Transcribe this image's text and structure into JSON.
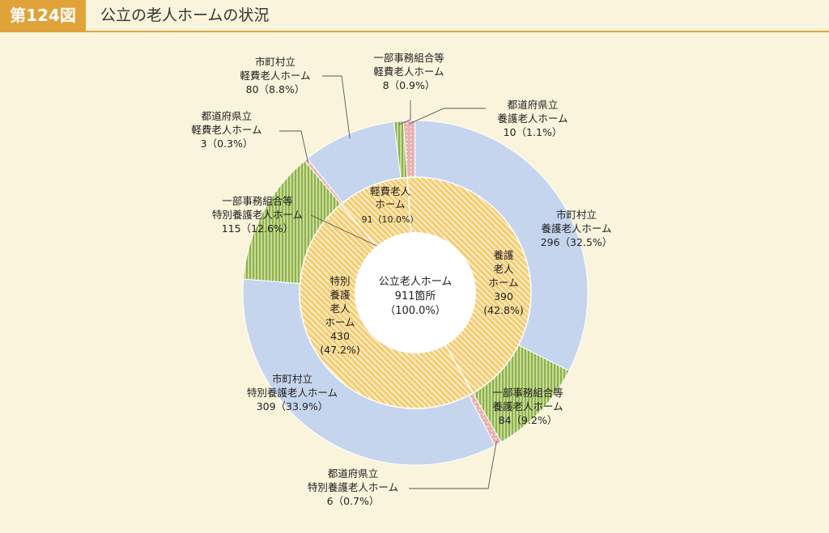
{
  "figure": {
    "number": "第124図",
    "title": "公立の老人ホームの状況"
  },
  "colors": {
    "light_blue": "#c6d5ee",
    "green": "#a7c46a",
    "pink": "#e3a8a8",
    "inner_fill": "#f2c466",
    "background": "#fbf4dc"
  },
  "chart_data": {
    "type": "pie",
    "center_label": {
      "line1": "公立老人ホーム",
      "line2": "911箇所",
      "line3": "（100.0%）"
    },
    "total": 911,
    "inner_ring": [
      {
        "name": "養護老人ホーム",
        "value": 390,
        "percent": 42.8,
        "label_lines": [
          "養護",
          "老人",
          "ホーム",
          "390",
          "(42.8%)"
        ]
      },
      {
        "name": "特別養護老人ホーム",
        "value": 430,
        "percent": 47.2,
        "label_lines": [
          "特別",
          "養護",
          "老人",
          "ホーム",
          "430",
          "(47.2%)"
        ]
      },
      {
        "name": "軽費老人ホーム",
        "value": 91,
        "percent": 10.0,
        "label_lines": [
          "軽費老人",
          "ホーム",
          "91（10.0%）"
        ]
      }
    ],
    "outer_ring": [
      {
        "name": "都道府県立養護老人ホーム",
        "value": 10,
        "percent": 1.1,
        "pattern": "pink",
        "label_lines": [
          "都道府県立",
          "養護老人ホーム",
          "10（1.1%）"
        ]
      },
      {
        "name": "市町村立養護老人ホーム",
        "value": 296,
        "percent": 32.5,
        "pattern": "blue",
        "label_lines": [
          "市町村立",
          "養護老人ホーム",
          "296（32.5%）"
        ]
      },
      {
        "name": "一部事務組合等養護老人ホーム",
        "value": 84,
        "percent": 9.2,
        "pattern": "green",
        "label_lines": [
          "一部事務組合等",
          "養護老人ホーム",
          "84（9.2%）"
        ]
      },
      {
        "name": "都道府県立特別養護老人ホーム",
        "value": 6,
        "percent": 0.7,
        "pattern": "pink",
        "label_lines": [
          "都道府県立",
          "特別養護老人ホーム",
          "6（0.7%）"
        ]
      },
      {
        "name": "市町村立特別養護老人ホーム",
        "value": 309,
        "percent": 33.9,
        "pattern": "blue",
        "label_lines": [
          "市町村立",
          "特別養護老人ホーム",
          "309（33.9%）"
        ]
      },
      {
        "name": "一部事務組合等特別養護老人ホーム",
        "value": 115,
        "percent": 12.6,
        "pattern": "green",
        "label_lines": [
          "一部事務組合等",
          "特別養護老人ホーム",
          "115（12.6%）"
        ]
      },
      {
        "name": "都道府県立軽費老人ホーム",
        "value": 3,
        "percent": 0.3,
        "pattern": "pink",
        "label_lines": [
          "都道府県立",
          "軽費老人ホーム",
          "3（0.3%）"
        ]
      },
      {
        "name": "市町村立軽費老人ホーム",
        "value": 80,
        "percent": 8.8,
        "pattern": "blue",
        "label_lines": [
          "市町村立",
          "軽費老人ホーム",
          "80（8.8%）"
        ]
      },
      {
        "name": "一部事務組合等軽費老人ホーム",
        "value": 8,
        "percent": 0.9,
        "pattern": "green",
        "label_lines": [
          "一部事務組合等",
          "軽費老人ホーム",
          "8（0.9%）"
        ]
      }
    ]
  }
}
